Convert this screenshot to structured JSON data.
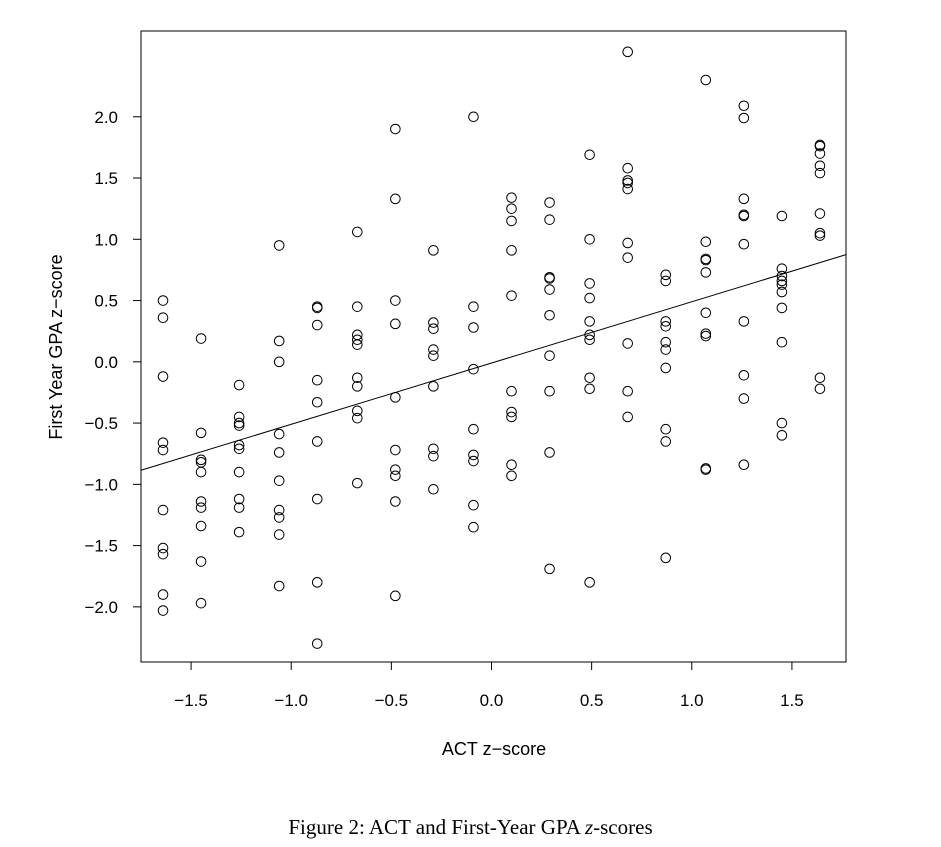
{
  "chart_data": {
    "type": "scatter",
    "xlabel": "ACT z−score",
    "ylabel": "First Year GPA z−score",
    "xlim": [
      -1.75,
      1.77
    ],
    "ylim": [
      -2.45,
      2.7
    ],
    "xticks": [
      -1.5,
      -1.0,
      -0.5,
      0.0,
      0.5,
      1.0,
      1.5
    ],
    "xtick_labels": [
      "−1.5",
      "−1.0",
      "−0.5",
      "0.0",
      "0.5",
      "1.0",
      "1.5"
    ],
    "yticks": [
      -2.0,
      -1.5,
      -1.0,
      -0.5,
      0.0,
      0.5,
      1.0,
      1.5,
      2.0
    ],
    "ytick_labels": [
      "−2.0",
      "−1.5",
      "−1.0",
      "−0.5",
      "0.0",
      "0.5",
      "1.0",
      "1.5",
      "2.0"
    ],
    "grid": false,
    "marker": "open circle",
    "regression_line": {
      "intercept": -0.01,
      "slope": 0.5
    },
    "points": [
      [
        -1.64,
        0.5
      ],
      [
        -1.64,
        0.36
      ],
      [
        -1.64,
        -0.12
      ],
      [
        -1.64,
        -0.66
      ],
      [
        -1.64,
        -0.72
      ],
      [
        -1.64,
        -1.21
      ],
      [
        -1.64,
        -1.52
      ],
      [
        -1.64,
        -1.57
      ],
      [
        -1.64,
        -1.9
      ],
      [
        -1.64,
        -2.03
      ],
      [
        -1.45,
        0.19
      ],
      [
        -1.45,
        -0.58
      ],
      [
        -1.45,
        -0.8
      ],
      [
        -1.45,
        -0.82
      ],
      [
        -1.45,
        -0.9
      ],
      [
        -1.45,
        -1.14
      ],
      [
        -1.45,
        -1.19
      ],
      [
        -1.45,
        -1.34
      ],
      [
        -1.45,
        -1.63
      ],
      [
        -1.45,
        -1.97
      ],
      [
        -1.26,
        -0.19
      ],
      [
        -1.26,
        -0.45
      ],
      [
        -1.26,
        -0.5
      ],
      [
        -1.26,
        -0.52
      ],
      [
        -1.26,
        -0.68
      ],
      [
        -1.26,
        -0.71
      ],
      [
        -1.26,
        -0.9
      ],
      [
        -1.26,
        -1.12
      ],
      [
        -1.26,
        -1.19
      ],
      [
        -1.26,
        -1.39
      ],
      [
        -1.06,
        0.95
      ],
      [
        -1.06,
        0.17
      ],
      [
        -1.06,
        0.0
      ],
      [
        -1.06,
        -0.59
      ],
      [
        -1.06,
        -0.74
      ],
      [
        -1.06,
        -0.97
      ],
      [
        -1.06,
        -1.21
      ],
      [
        -1.06,
        -1.27
      ],
      [
        -1.06,
        -1.41
      ],
      [
        -1.06,
        -1.83
      ],
      [
        -0.87,
        0.45
      ],
      [
        -0.87,
        0.44
      ],
      [
        -0.87,
        0.3
      ],
      [
        -0.87,
        -0.15
      ],
      [
        -0.87,
        -0.33
      ],
      [
        -0.87,
        -0.65
      ],
      [
        -0.87,
        -1.12
      ],
      [
        -0.87,
        -1.8
      ],
      [
        -0.87,
        -2.3
      ],
      [
        -0.67,
        1.06
      ],
      [
        -0.67,
        0.45
      ],
      [
        -0.67,
        0.22
      ],
      [
        -0.67,
        0.18
      ],
      [
        -0.67,
        0.14
      ],
      [
        -0.67,
        -0.13
      ],
      [
        -0.67,
        -0.2
      ],
      [
        -0.67,
        -0.4
      ],
      [
        -0.67,
        -0.46
      ],
      [
        -0.67,
        -0.99
      ],
      [
        -0.48,
        1.9
      ],
      [
        -0.48,
        1.33
      ],
      [
        -0.48,
        0.5
      ],
      [
        -0.48,
        0.31
      ],
      [
        -0.48,
        -0.29
      ],
      [
        -0.48,
        -0.72
      ],
      [
        -0.48,
        -0.88
      ],
      [
        -0.48,
        -0.93
      ],
      [
        -0.48,
        -1.14
      ],
      [
        -0.48,
        -1.91
      ],
      [
        -0.29,
        0.91
      ],
      [
        -0.29,
        0.32
      ],
      [
        -0.29,
        0.27
      ],
      [
        -0.29,
        0.1
      ],
      [
        -0.29,
        0.05
      ],
      [
        -0.29,
        -0.2
      ],
      [
        -0.29,
        -0.71
      ],
      [
        -0.29,
        -0.77
      ],
      [
        -0.29,
        -1.04
      ],
      [
        -0.09,
        2.0
      ],
      [
        -0.09,
        0.45
      ],
      [
        -0.09,
        0.28
      ],
      [
        -0.09,
        -0.06
      ],
      [
        -0.09,
        -0.55
      ],
      [
        -0.09,
        -0.76
      ],
      [
        -0.09,
        -0.81
      ],
      [
        -0.09,
        -1.17
      ],
      [
        -0.09,
        -1.35
      ],
      [
        0.1,
        1.34
      ],
      [
        0.1,
        1.25
      ],
      [
        0.1,
        1.15
      ],
      [
        0.1,
        0.91
      ],
      [
        0.1,
        0.54
      ],
      [
        0.1,
        -0.24
      ],
      [
        0.1,
        -0.41
      ],
      [
        0.1,
        -0.45
      ],
      [
        0.1,
        -0.84
      ],
      [
        0.1,
        -0.93
      ],
      [
        0.29,
        1.3
      ],
      [
        0.29,
        1.16
      ],
      [
        0.29,
        0.69
      ],
      [
        0.29,
        0.68
      ],
      [
        0.29,
        0.59
      ],
      [
        0.29,
        0.38
      ],
      [
        0.29,
        0.05
      ],
      [
        0.29,
        -0.24
      ],
      [
        0.29,
        -0.74
      ],
      [
        0.29,
        -1.69
      ],
      [
        0.49,
        1.69
      ],
      [
        0.49,
        1.0
      ],
      [
        0.49,
        0.64
      ],
      [
        0.49,
        0.52
      ],
      [
        0.49,
        0.33
      ],
      [
        0.49,
        0.22
      ],
      [
        0.49,
        0.18
      ],
      [
        0.49,
        -0.13
      ],
      [
        0.49,
        -0.22
      ],
      [
        0.49,
        -1.8
      ],
      [
        0.68,
        2.53
      ],
      [
        0.68,
        1.58
      ],
      [
        0.68,
        1.48
      ],
      [
        0.68,
        1.46
      ],
      [
        0.68,
        1.41
      ],
      [
        0.68,
        0.97
      ],
      [
        0.68,
        0.85
      ],
      [
        0.68,
        0.15
      ],
      [
        0.68,
        -0.24
      ],
      [
        0.68,
        -0.45
      ],
      [
        0.87,
        0.71
      ],
      [
        0.87,
        0.66
      ],
      [
        0.87,
        0.33
      ],
      [
        0.87,
        0.29
      ],
      [
        0.87,
        0.16
      ],
      [
        0.87,
        0.1
      ],
      [
        0.87,
        -0.05
      ],
      [
        0.87,
        -0.55
      ],
      [
        0.87,
        -0.65
      ],
      [
        0.87,
        -1.6
      ],
      [
        1.07,
        2.3
      ],
      [
        1.07,
        0.98
      ],
      [
        1.07,
        0.84
      ],
      [
        1.07,
        0.83
      ],
      [
        1.07,
        0.73
      ],
      [
        1.07,
        0.4
      ],
      [
        1.07,
        0.23
      ],
      [
        1.07,
        0.21
      ],
      [
        1.07,
        -0.87
      ],
      [
        1.07,
        -0.88
      ],
      [
        1.26,
        2.09
      ],
      [
        1.26,
        1.99
      ],
      [
        1.26,
        1.33
      ],
      [
        1.26,
        1.2
      ],
      [
        1.26,
        1.19
      ],
      [
        1.26,
        0.96
      ],
      [
        1.26,
        0.33
      ],
      [
        1.26,
        -0.11
      ],
      [
        1.26,
        -0.3
      ],
      [
        1.26,
        -0.84
      ],
      [
        1.45,
        1.19
      ],
      [
        1.45,
        0.76
      ],
      [
        1.45,
        0.7
      ],
      [
        1.45,
        0.66
      ],
      [
        1.45,
        0.63
      ],
      [
        1.45,
        0.57
      ],
      [
        1.45,
        0.44
      ],
      [
        1.45,
        0.16
      ],
      [
        1.45,
        -0.5
      ],
      [
        1.45,
        -0.6
      ],
      [
        1.64,
        1.77
      ],
      [
        1.64,
        1.76
      ],
      [
        1.64,
        1.7
      ],
      [
        1.64,
        1.6
      ],
      [
        1.64,
        1.54
      ],
      [
        1.64,
        1.21
      ],
      [
        1.64,
        1.05
      ],
      [
        1.64,
        1.03
      ],
      [
        1.64,
        -0.13
      ],
      [
        1.64,
        -0.22
      ]
    ]
  },
  "caption": {
    "prefix": "Figure 2: ACT and First-Year GPA ",
    "italic": "z",
    "suffix": "-scores"
  }
}
